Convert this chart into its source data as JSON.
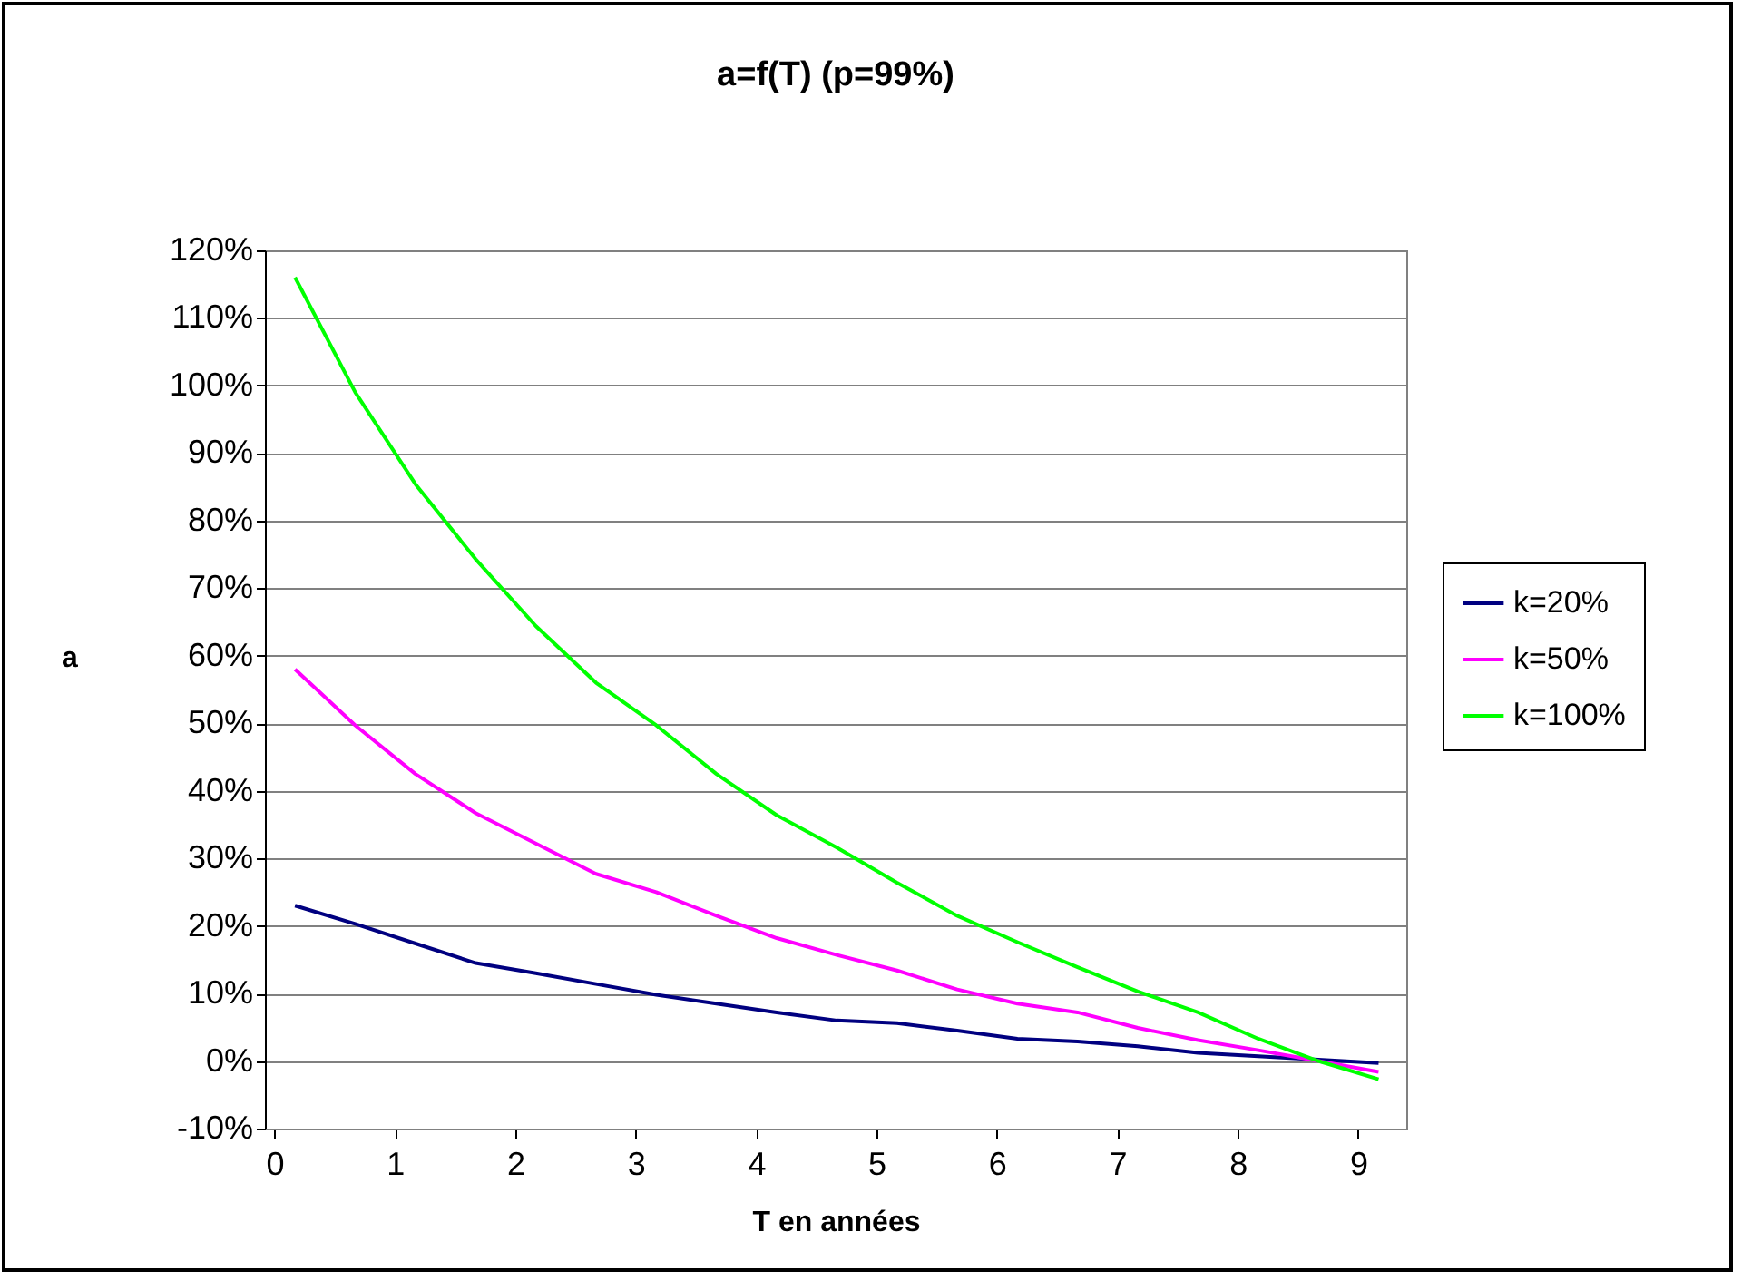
{
  "chart_data": {
    "type": "line",
    "title": "a=f(T)      (p=99%)",
    "xlabel": "T en années",
    "ylabel": "a",
    "x": [
      0.17,
      0.67,
      1.17,
      1.67,
      2.17,
      2.67,
      3.17,
      3.67,
      4.17,
      4.67,
      5.17,
      5.67,
      6.17,
      6.67,
      7.17,
      7.67,
      8.17,
      8.67,
      9.17
    ],
    "series": [
      {
        "name": "k=20%",
        "color": "#000080",
        "values": [
          23,
          20.3,
          17.4,
          14.5,
          13,
          11.4,
          9.8,
          8.5,
          7.2,
          6,
          5.6,
          4.5,
          3.3,
          2.9,
          2.2,
          1.2,
          0.7,
          0.2,
          -0.3
        ]
      },
      {
        "name": "k=50%",
        "color": "#ff00ff",
        "values": [
          58,
          49.7,
          42.5,
          36.7,
          32.2,
          27.7,
          25,
          21.5,
          18.2,
          15.7,
          13.4,
          10.6,
          8.5,
          7.2,
          4.9,
          3.1,
          1.6,
          0,
          -1.6
        ]
      },
      {
        "name": "k=100%",
        "color": "#00ff00",
        "values": [
          116,
          99,
          85.4,
          74.3,
          64.4,
          56,
          49.7,
          42.5,
          36.4,
          31.6,
          26.4,
          21.5,
          17.6,
          13.9,
          10.3,
          7.2,
          3.3,
          0,
          -2.7
        ]
      }
    ],
    "xlim": [
      -0.08,
      9.4
    ],
    "xticks": [
      0,
      1,
      2,
      3,
      4,
      5,
      6,
      7,
      8,
      9
    ],
    "ylim": [
      -10,
      120
    ],
    "yticks": [
      {
        "value": -10,
        "label": "-10%"
      },
      {
        "value": 0,
        "label": "0%"
      },
      {
        "value": 10,
        "label": "10%"
      },
      {
        "value": 20,
        "label": "20%"
      },
      {
        "value": 30,
        "label": "30%"
      },
      {
        "value": 40,
        "label": "40%"
      },
      {
        "value": 50,
        "label": "50%"
      },
      {
        "value": 60,
        "label": "60%"
      },
      {
        "value": 70,
        "label": "70%"
      },
      {
        "value": 80,
        "label": "80%"
      },
      {
        "value": 90,
        "label": "90%"
      },
      {
        "value": 100,
        "label": "100%"
      },
      {
        "value": 110,
        "label": "110%"
      },
      {
        "value": 120,
        "label": "120%"
      }
    ],
    "grid": "y",
    "legend": "right",
    "marker": "none",
    "line_style": "solid"
  }
}
